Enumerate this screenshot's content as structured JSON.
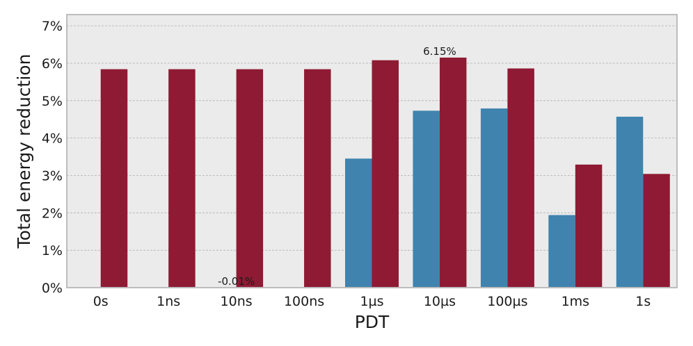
{
  "chart_data": {
    "type": "bar",
    "xlabel": "PDT",
    "ylabel": "Total energy reduction",
    "categories": [
      "0s",
      "1ns",
      "10ns",
      "100ns",
      "1µs",
      "10µs",
      "100µs",
      "1ms",
      "1s"
    ],
    "series": [
      {
        "color": "#3f83ae",
        "values": [
          0,
          0,
          -0.01,
          0,
          3.45,
          4.73,
          4.79,
          1.94,
          4.57
        ]
      },
      {
        "color": "#8f1a33",
        "values": [
          5.84,
          5.84,
          5.84,
          5.84,
          6.08,
          6.15,
          5.86,
          3.29,
          3.04
        ]
      }
    ],
    "ylim": [
      0,
      7.3
    ],
    "yticks": [
      0,
      1,
      2,
      3,
      4,
      5,
      6,
      7
    ],
    "ytick_labels": [
      "0%",
      "1%",
      "2%",
      "3%",
      "4%",
      "5%",
      "6%",
      "7%"
    ],
    "annotations": [
      {
        "text": "-0.01%",
        "category": "10ns",
        "value": -0.01
      },
      {
        "text": "6.15%",
        "category": "10µs",
        "value": 6.15
      }
    ],
    "grid": true,
    "plot_background": "#ebebeb",
    "grid_color": "#b0b0b0",
    "frame_color": "#bdbdbd"
  }
}
